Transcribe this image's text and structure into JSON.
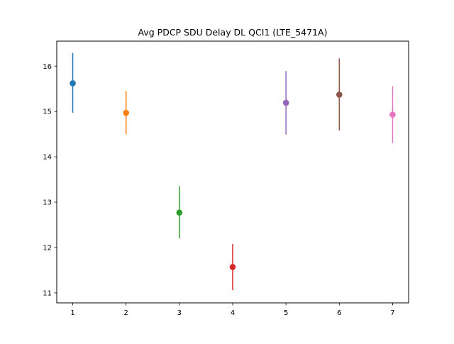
{
  "chart_data": {
    "type": "scatter",
    "title": "Avg PDCP SDU Delay DL QCI1 (LTE_5471A)",
    "xlabel": "",
    "ylabel": "",
    "x_ticks": [
      1,
      2,
      3,
      4,
      5,
      6,
      7
    ],
    "y_ticks": [
      11,
      12,
      13,
      14,
      15,
      16
    ],
    "xlim": [
      0.7,
      7.3
    ],
    "ylim": [
      10.78,
      16.55
    ],
    "grid": false,
    "series": [
      {
        "x": 1,
        "y": 15.62,
        "err_low": 14.97,
        "err_high": 16.29,
        "color": "#1f77b4"
      },
      {
        "x": 2,
        "y": 14.97,
        "err_low": 14.5,
        "err_high": 15.45,
        "color": "#ff7f0e"
      },
      {
        "x": 3,
        "y": 12.77,
        "err_low": 12.2,
        "err_high": 13.35,
        "color": "#2ca02c"
      },
      {
        "x": 4,
        "y": 11.57,
        "err_low": 11.06,
        "err_high": 12.08,
        "color": "#d62728"
      },
      {
        "x": 5,
        "y": 15.19,
        "err_low": 14.49,
        "err_high": 15.89,
        "color": "#9467bd"
      },
      {
        "x": 6,
        "y": 15.37,
        "err_low": 14.58,
        "err_high": 16.17,
        "color": "#8c564b"
      },
      {
        "x": 7,
        "y": 14.93,
        "err_low": 14.3,
        "err_high": 15.56,
        "color": "#e377c2"
      }
    ]
  }
}
